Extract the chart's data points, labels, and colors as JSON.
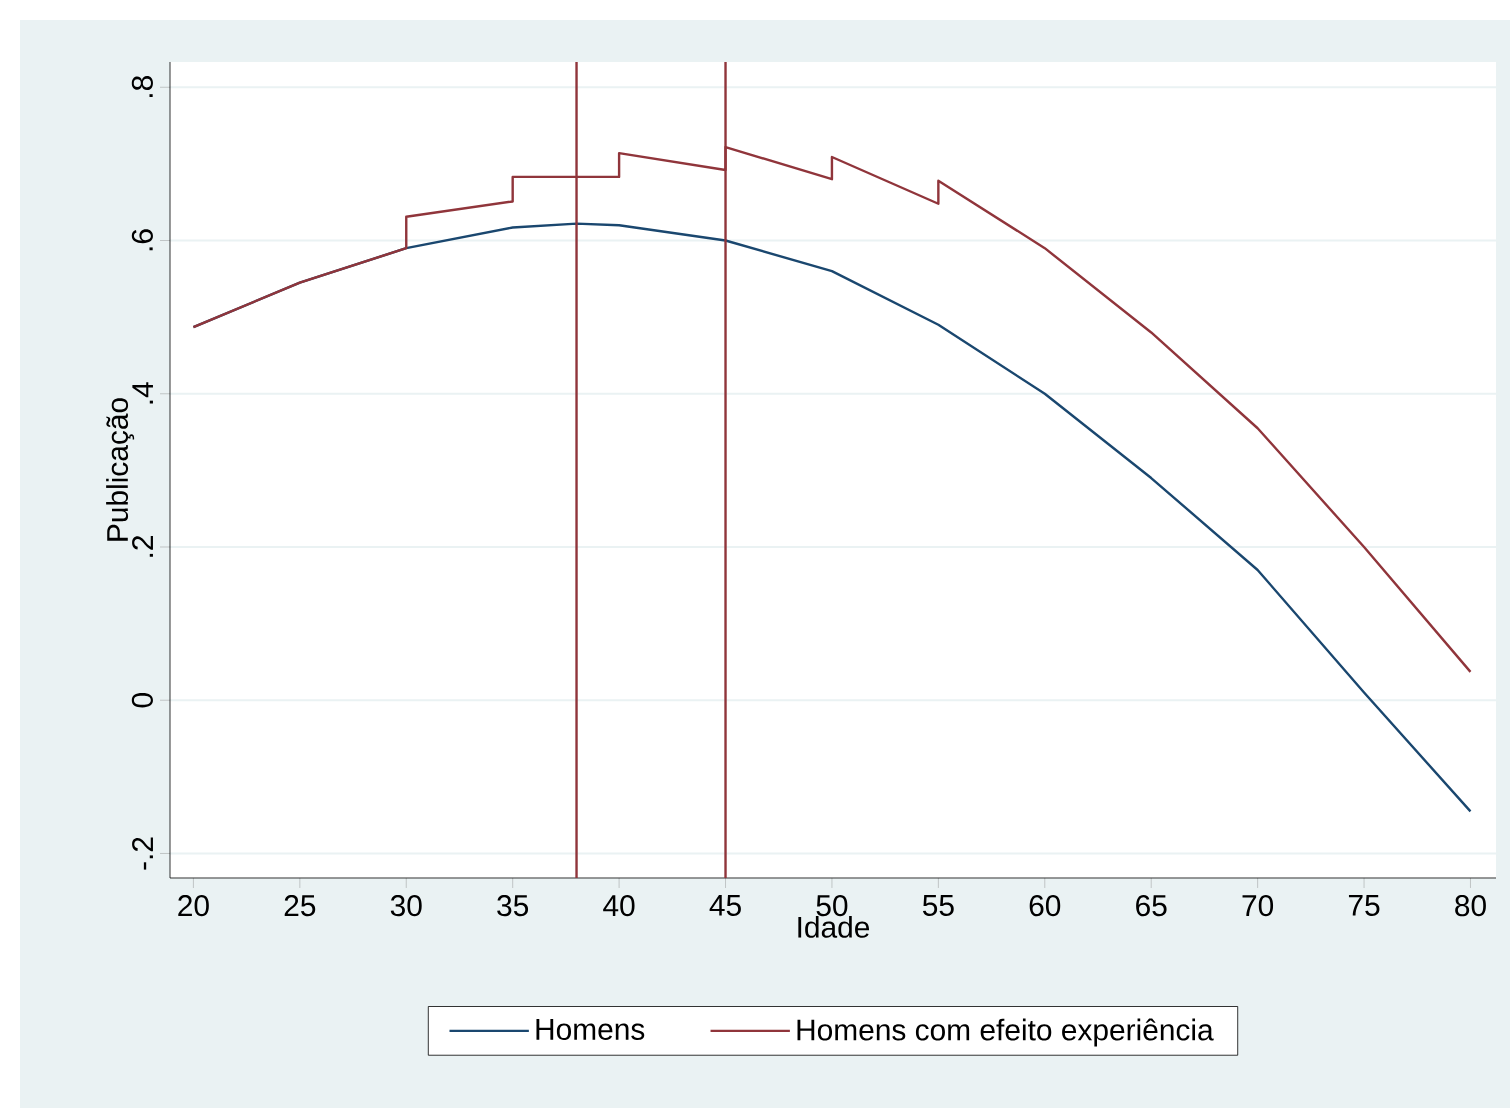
{
  "chart_data": {
    "type": "line",
    "xlabel": "Idade",
    "ylabel": "Publicação",
    "xlim": [
      18.9,
      81.2
    ],
    "ylim": [
      -0.232,
      0.833
    ],
    "xticks": [
      20,
      25,
      30,
      35,
      40,
      45,
      50,
      55,
      60,
      65,
      70,
      75,
      80
    ],
    "yticks": [
      {
        "value": -0.2,
        "label": "-.2"
      },
      {
        "value": 0,
        "label": "0"
      },
      {
        "value": 0.2,
        "label": ".2"
      },
      {
        "value": 0.4,
        "label": ".4"
      },
      {
        "value": 0.6,
        "label": ".6"
      },
      {
        "value": 0.8,
        "label": ".8"
      }
    ],
    "grid": "y",
    "legend": "bottom",
    "line_style": "solid",
    "marker": "none",
    "series": [
      {
        "name": "Homens",
        "color": "#1a476f",
        "x": [
          20,
          25,
          30,
          35,
          38,
          40,
          45,
          50,
          55,
          60,
          65,
          70,
          75,
          80
        ],
        "values": [
          0.487,
          0.545,
          0.59,
          0.617,
          0.622,
          0.62,
          0.6,
          0.56,
          0.49,
          0.4,
          0.29,
          0.17,
          0.01,
          -0.145
        ]
      },
      {
        "name": "Homens com efeito experiência",
        "color": "#90353b",
        "x": [
          20,
          25,
          30,
          30,
          35,
          35,
          40,
          40,
          45,
          45,
          50,
          50,
          55,
          55,
          60,
          65,
          70,
          75,
          80
        ],
        "values": [
          0.487,
          0.545,
          0.59,
          0.631,
          0.651,
          0.683,
          0.683,
          0.714,
          0.692,
          0.722,
          0.68,
          0.709,
          0.648,
          0.678,
          0.59,
          0.48,
          0.355,
          0.2,
          0.037
        ]
      }
    ],
    "ref_lines": [
      {
        "axis": "x",
        "value": 38,
        "color": "#90353b"
      },
      {
        "axis": "x",
        "value": 45,
        "color": "#90353b"
      }
    ]
  }
}
